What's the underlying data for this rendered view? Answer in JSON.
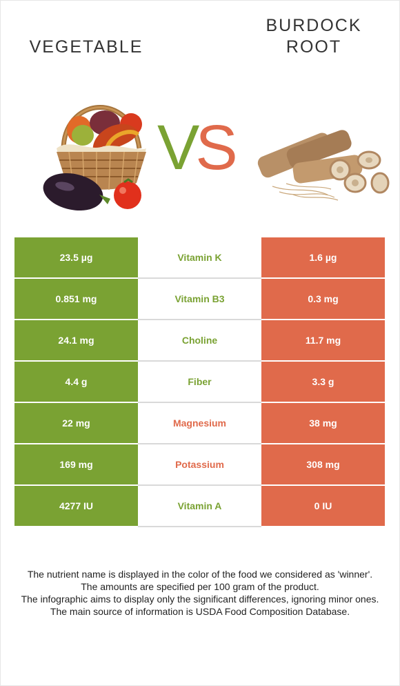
{
  "header": {
    "left_title": "VEGETABLE",
    "right_title_line1": "BURDOCK",
    "right_title_line2": "ROOT",
    "vs_v": "V",
    "vs_s": "S"
  },
  "images": {
    "left": "vegetable-basket-photo",
    "right": "burdock-root-photo"
  },
  "colors": {
    "left_food": "#7aa233",
    "right_food": "#e06a4b"
  },
  "rows": [
    {
      "left": "23.5 µg",
      "name": "Vitamin K",
      "right": "1.6 µg",
      "winner": "left"
    },
    {
      "left": "0.851 mg",
      "name": "Vitamin B3",
      "right": "0.3 mg",
      "winner": "left"
    },
    {
      "left": "24.1 mg",
      "name": "Choline",
      "right": "11.7 mg",
      "winner": "left"
    },
    {
      "left": "4.4 g",
      "name": "Fiber",
      "right": "3.3 g",
      "winner": "left"
    },
    {
      "left": "22 mg",
      "name": "Magnesium",
      "right": "38 mg",
      "winner": "right"
    },
    {
      "left": "169 mg",
      "name": "Potassium",
      "right": "308 mg",
      "winner": "right"
    },
    {
      "left": "4277 IU",
      "name": "Vitamin A",
      "right": "0 IU",
      "winner": "left"
    }
  ],
  "footer": {
    "line1": "The nutrient name is displayed in the color of the food we considered as 'winner'.",
    "line2": "The amounts are specified per 100 gram of the product.",
    "line3": "The infographic aims to display only the significant differences, ignoring minor ones.",
    "line4": "The main source of information is USDA Food Composition Database."
  }
}
